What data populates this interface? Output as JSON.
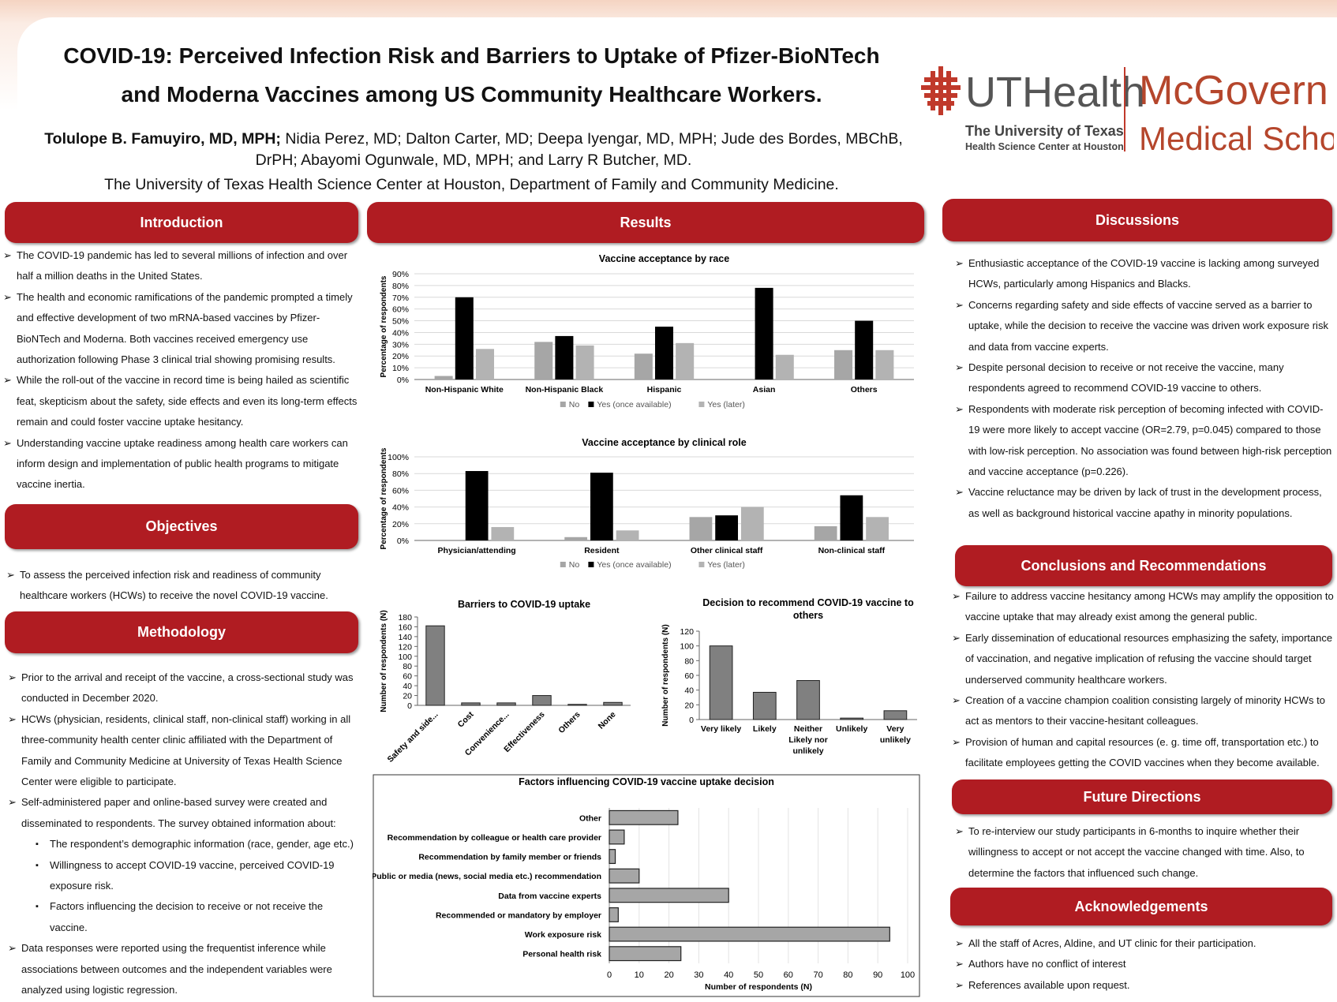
{
  "header": {
    "title_lines": [
      "COVID-19: Perceived Infection Risk and Barriers to Uptake of Pfizer-BioNTech",
      "and Moderna Vaccines among US Community Healthcare Workers."
    ],
    "lead_author": "Tolulope B. Famuyiro, MD, MPH;",
    "other_authors": "Nidia Perez, MD;  Dalton Carter, MD; Deepa Iyengar, MD, MPH; Jude des Bordes, MBChB, DrPH; Abayomi Ogunwale, MD, MPH; and Larry R Butcher, MD.",
    "affiliation": "The University of Texas Health Science Center at Houston, Department of Family and Community Medicine.",
    "logo": {
      "uthealth": "UTHealth",
      "university": "The University of Texas",
      "center": "Health Science Center at Houston",
      "mcgovern": "McGovern",
      "school": "Medical School"
    }
  },
  "introduction": {
    "title": "Introduction",
    "items": [
      "The COVID-19 pandemic has led to several millions of infection and over half a million deaths in the United States.",
      "The health and economic ramifications of the pandemic prompted a timely and effective development of two mRNA-based vaccines by Pfizer-BioNTech and Moderna. Both vaccines received emergency use authorization following Phase 3  clinical trial showing promising results.",
      "While the roll-out of the vaccine in record time is being hailed as scientific feat, skepticism about the safety, side effects and even its long-term effects remain and could foster vaccine uptake hesitancy.",
      "Understanding vaccine uptake readiness among health care workers can inform design and implementation of public health programs  to mitigate vaccine inertia."
    ]
  },
  "objectives": {
    "title": "Objectives",
    "items": [
      "To assess the perceived infection risk and readiness of community healthcare workers (HCWs) to receive the novel COVID-19 vaccine."
    ]
  },
  "methodology": {
    "title": "Methodology",
    "items": [
      "Prior to the arrival and receipt of the vaccine,  a cross-sectional study was conducted in December 2020.",
      "HCWs (physician, residents, clinical staff, non-clinical staff) working in all three-community health center clinic affiliated with the Department of Family and Community Medicine at University of Texas Health Science Center were eligible to participate.",
      {
        "text": "Self-administered  paper and online-based survey were created and disseminated to respondents. The survey obtained information about:",
        "subitems": [
          "The respondent’s demographic information (race, gender, age etc.)",
          "Willingness to accept COVID-19 vaccine, perceived COVID-19 exposure risk.",
          "Factors influencing the decision to receive or not receive the vaccine."
        ]
      },
      "Data responses were reported using the frequentist inference while associations between outcomes and the independent variables were analyzed using logistic regression."
    ]
  },
  "results": {
    "title": "Results"
  },
  "discussions": {
    "title": "Discussions",
    "items": [
      "Enthusiastic acceptance of the COVID-19 vaccine is lacking among surveyed HCWs, particularly among Hispanics and Blacks.",
      "Concerns regarding safety and side effects of vaccine served as a barrier to uptake, while the decision to receive the vaccine was driven work exposure risk and data from vaccine experts.",
      "Despite personal decision to receive or not receive the vaccine, many respondents agreed to recommend COVID-19 vaccine to others.",
      "Respondents with moderate risk perception of becoming infected with COVID-19 were more likely to accept vaccine (OR=2.79, p=0.045) compared to those with low-risk perception. No association was found between high-risk perception and vaccine acceptance (p=0.226).",
      "Vaccine reluctance may be driven by lack of trust in the development process, as well as background historical vaccine apathy in minority populations."
    ]
  },
  "conclusions": {
    "title": "Conclusions and Recommendations",
    "items": [
      "Failure to address vaccine hesitancy among HCWs may amplify the opposition to vaccine uptake that may already exist among the general public.",
      "Early dissemination of educational resources emphasizing the safety, importance of vaccination, and negative implication of refusing the vaccine should target underserved community healthcare workers.",
      "Creation of a vaccine champion coalition consisting largely of minority HCWs to act as mentors to their vaccine-hesitant colleagues.",
      "Provision of human and capital resources (e. g. time off, transportation etc.) to facilitate employees getting the COVID vaccines when they become available."
    ]
  },
  "future_directions": {
    "title": "Future Directions",
    "items": [
      "To re-interview our study participants in 6-months to inquire whether their willingness to accept or not accept the vaccine changed with time. Also, to determine the factors that influenced such change."
    ]
  },
  "acknowledgements": {
    "title": "Acknowledgements",
    "items": [
      "All the staff of Acres,  Aldine, and UT clinic for their participation.",
      "Authors have no conflict of interest",
      "References available upon request."
    ]
  },
  "chart_data": [
    {
      "type": "bar",
      "title": "Vaccine acceptance by race",
      "y_label": "Percentage of respondents",
      "categories": [
        "Non-Hispanic White",
        "Non-Hispanic Black",
        "Hispanic",
        "Asian",
        "Others"
      ],
      "series": [
        {
          "name": "No",
          "color": "#a6a6a6",
          "values": [
            3,
            32,
            22,
            0,
            25
          ]
        },
        {
          "name": "Yes (once available)",
          "color": "#000000",
          "values": [
            70,
            37,
            45,
            78,
            50
          ]
        },
        {
          "name": "Yes (later)",
          "color": "#b3b3b3",
          "values": [
            26,
            29,
            31,
            21,
            25
          ]
        }
      ],
      "ylim": [
        0,
        90
      ],
      "yticks": [
        {
          "value": 0,
          "label": "0%"
        },
        {
          "value": 10,
          "label": "10%"
        },
        {
          "value": 20,
          "label": "20%"
        },
        {
          "value": 30,
          "label": "30%"
        },
        {
          "value": 40,
          "label": "40%"
        },
        {
          "value": 50,
          "label": "50%"
        },
        {
          "value": 60,
          "label": "60%"
        },
        {
          "value": 70,
          "label": "70%"
        },
        {
          "value": 80,
          "label": "80%"
        },
        {
          "value": 90,
          "label": "90%"
        }
      ],
      "grid": true,
      "legend": "bottom"
    },
    {
      "type": "bar",
      "title": "Vaccine acceptance by clinical role",
      "y_label": "Percentage of respondents",
      "categories": [
        "Physician/attending",
        "Resident",
        "Other clinical staff",
        "Non-clinical staff"
      ],
      "series": [
        {
          "name": "No",
          "color": "#a6a6a6",
          "values": [
            0,
            4,
            28,
            17
          ]
        },
        {
          "name": "Yes (once available)",
          "color": "#000000",
          "values": [
            83,
            81,
            30,
            54
          ]
        },
        {
          "name": "Yes (later)",
          "color": "#b3b3b3",
          "values": [
            16,
            12,
            40,
            28
          ]
        }
      ],
      "ylim": [
        0,
        100
      ],
      "yticks": [
        {
          "value": 0,
          "label": "0%"
        },
        {
          "value": 20,
          "label": "20%"
        },
        {
          "value": 40,
          "label": "40%"
        },
        {
          "value": 60,
          "label": "60%"
        },
        {
          "value": 80,
          "label": "80%"
        },
        {
          "value": 100,
          "label": "100%"
        }
      ],
      "grid": true,
      "legend": "bottom"
    },
    {
      "type": "bar",
      "title": "Barriers to COVID-19 uptake",
      "y_label": "Number of respondents (N)",
      "categories": [
        "Safety and side...",
        "Cost",
        "Convenience...",
        "Effectiveness",
        "Others",
        "None"
      ],
      "values": [
        162,
        5,
        5,
        20,
        2,
        6
      ],
      "color": "#808080",
      "ylim": [
        0,
        180
      ],
      "yticks": [
        0,
        20,
        40,
        60,
        80,
        100,
        120,
        140,
        160,
        180
      ],
      "grid": false
    },
    {
      "type": "bar",
      "title": "Decision to recommend COVID-19 vaccine to others",
      "y_label": "Number of respondents (N)",
      "categories": [
        "Very likely",
        "Likely",
        "Neither Likely nor unlikely",
        "Unlikely",
        "Very unlikely"
      ],
      "values": [
        100,
        37,
        53,
        2,
        12
      ],
      "color": "#808080",
      "ylim": [
        0,
        120
      ],
      "yticks": [
        0,
        20,
        40,
        60,
        80,
        100,
        120
      ],
      "grid": false
    },
    {
      "type": "bar",
      "orientation": "horizontal",
      "title": "Factors influencing COVID-19 vaccine uptake decision",
      "x_label": "Number of respondents (N)",
      "categories": [
        "Other",
        "Recommendation by colleague or health care provider",
        "Recommendation by family member or friends",
        "Public or media (news, social media etc.) recommendation",
        "Data from vaccine experts",
        "Recommended or mandatory by employer",
        "Work exposure risk",
        "Personal health risk"
      ],
      "values": [
        23,
        5,
        2,
        10,
        40,
        3,
        94,
        24
      ],
      "color": "#a6a6a6",
      "xlim": [
        0,
        100
      ],
      "xticks": [
        0,
        10,
        20,
        30,
        40,
        50,
        60,
        70,
        80,
        90,
        100
      ],
      "grid": true
    }
  ]
}
